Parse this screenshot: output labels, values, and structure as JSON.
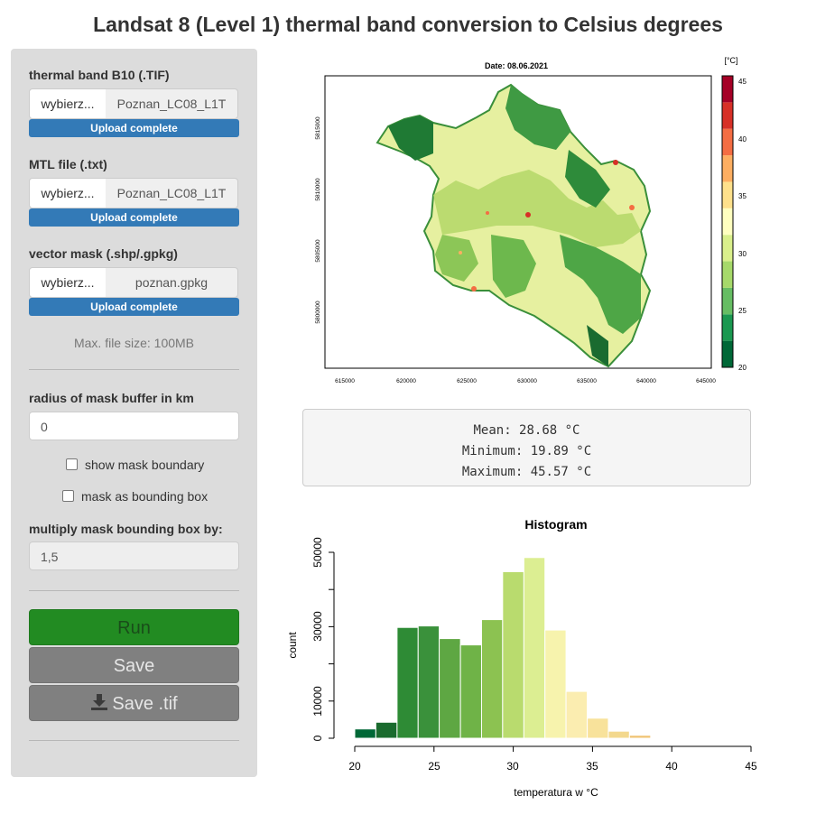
{
  "title": "Landsat 8 (Level 1) thermal band conversion to Celsius degrees",
  "sidebar": {
    "thermal_label": "thermal band B10 (.TIF)",
    "thermal_browse": "wybierz...",
    "thermal_file": "Poznan_LC08_L1T",
    "thermal_status": "Upload complete",
    "mtl_label": "MTL file (.txt)",
    "mtl_browse": "wybierz...",
    "mtl_file": "Poznan_LC08_L1T",
    "mtl_status": "Upload complete",
    "mask_label": "vector mask (.shp/.gpkg)",
    "mask_browse": "wybierz...",
    "mask_file": "poznan.gpkg",
    "mask_status": "Upload complete",
    "max_size": "Max. file size: 100MB",
    "radius_label": "radius of mask buffer in km",
    "radius_value": "0",
    "show_boundary": "show mask boundary",
    "bounding_box": "mask as bounding box",
    "multiply_label": "multiply mask bounding box by:",
    "multiply_value": "1,5",
    "run": "Run",
    "save": "Save",
    "save_tif": "Save .tif",
    "icons": {
      "download": "download-icon"
    }
  },
  "map": {
    "date_title": "Date:  08.06.2021",
    "legend_unit": "[°C]",
    "x_ticks": [
      "615000",
      "620000",
      "625000",
      "630000",
      "635000",
      "640000",
      "645000"
    ],
    "y_ticks": [
      "5815000",
      "5810000",
      "5805000",
      "5800000"
    ],
    "legend_ticks": [
      "45",
      "40",
      "35",
      "30",
      "25",
      "20"
    ],
    "legend_colors": [
      "#006837",
      "#1a9850",
      "#66bd63",
      "#a6d96a",
      "#d9ef8b",
      "#ffffbf",
      "#fee08b",
      "#fdae61",
      "#f46d43",
      "#d73027",
      "#a50026"
    ]
  },
  "stats": {
    "mean": "Mean: 28.68 °C",
    "minimum": "Minimum: 19.89 °C",
    "maximum": "Maximum: 45.57 °C"
  },
  "chart_data": {
    "type": "bar",
    "title": "Histogram",
    "xlabel": "temperatura w °C",
    "ylabel": "count",
    "x_ticks": [
      "20",
      "25",
      "30",
      "35",
      "40",
      "45"
    ],
    "y_ticks": [
      "0",
      "10000",
      "30000",
      "50000"
    ],
    "xlim": [
      20,
      45
    ],
    "ylim": [
      0,
      50000
    ],
    "bins": [
      {
        "x0": 20,
        "x1": 21.33,
        "count": 2500,
        "color": "#006837"
      },
      {
        "x0": 21.33,
        "x1": 22.67,
        "count": 4300,
        "color": "#1a6b2e"
      },
      {
        "x0": 22.67,
        "x1": 24,
        "count": 29800,
        "color": "#2e8b35"
      },
      {
        "x0": 24,
        "x1": 25.33,
        "count": 30200,
        "color": "#3a913b"
      },
      {
        "x0": 25.33,
        "x1": 26.67,
        "count": 26800,
        "color": "#5ea743"
      },
      {
        "x0": 26.67,
        "x1": 28,
        "count": 25100,
        "color": "#6fb347"
      },
      {
        "x0": 28,
        "x1": 29.33,
        "count": 31900,
        "color": "#8cc251"
      },
      {
        "x0": 29.33,
        "x1": 30.67,
        "count": 44800,
        "color": "#b9db6e"
      },
      {
        "x0": 30.67,
        "x1": 32,
        "count": 48600,
        "color": "#dcee92"
      },
      {
        "x0": 32,
        "x1": 33.33,
        "count": 29100,
        "color": "#f7f3ad"
      },
      {
        "x0": 33.33,
        "x1": 34.67,
        "count": 12600,
        "color": "#fbedb0"
      },
      {
        "x0": 34.67,
        "x1": 36,
        "count": 5400,
        "color": "#f8e29b"
      },
      {
        "x0": 36,
        "x1": 37.33,
        "count": 1900,
        "color": "#f3d88d"
      },
      {
        "x0": 37.33,
        "x1": 38.67,
        "count": 800,
        "color": "#f0c474"
      }
    ]
  }
}
